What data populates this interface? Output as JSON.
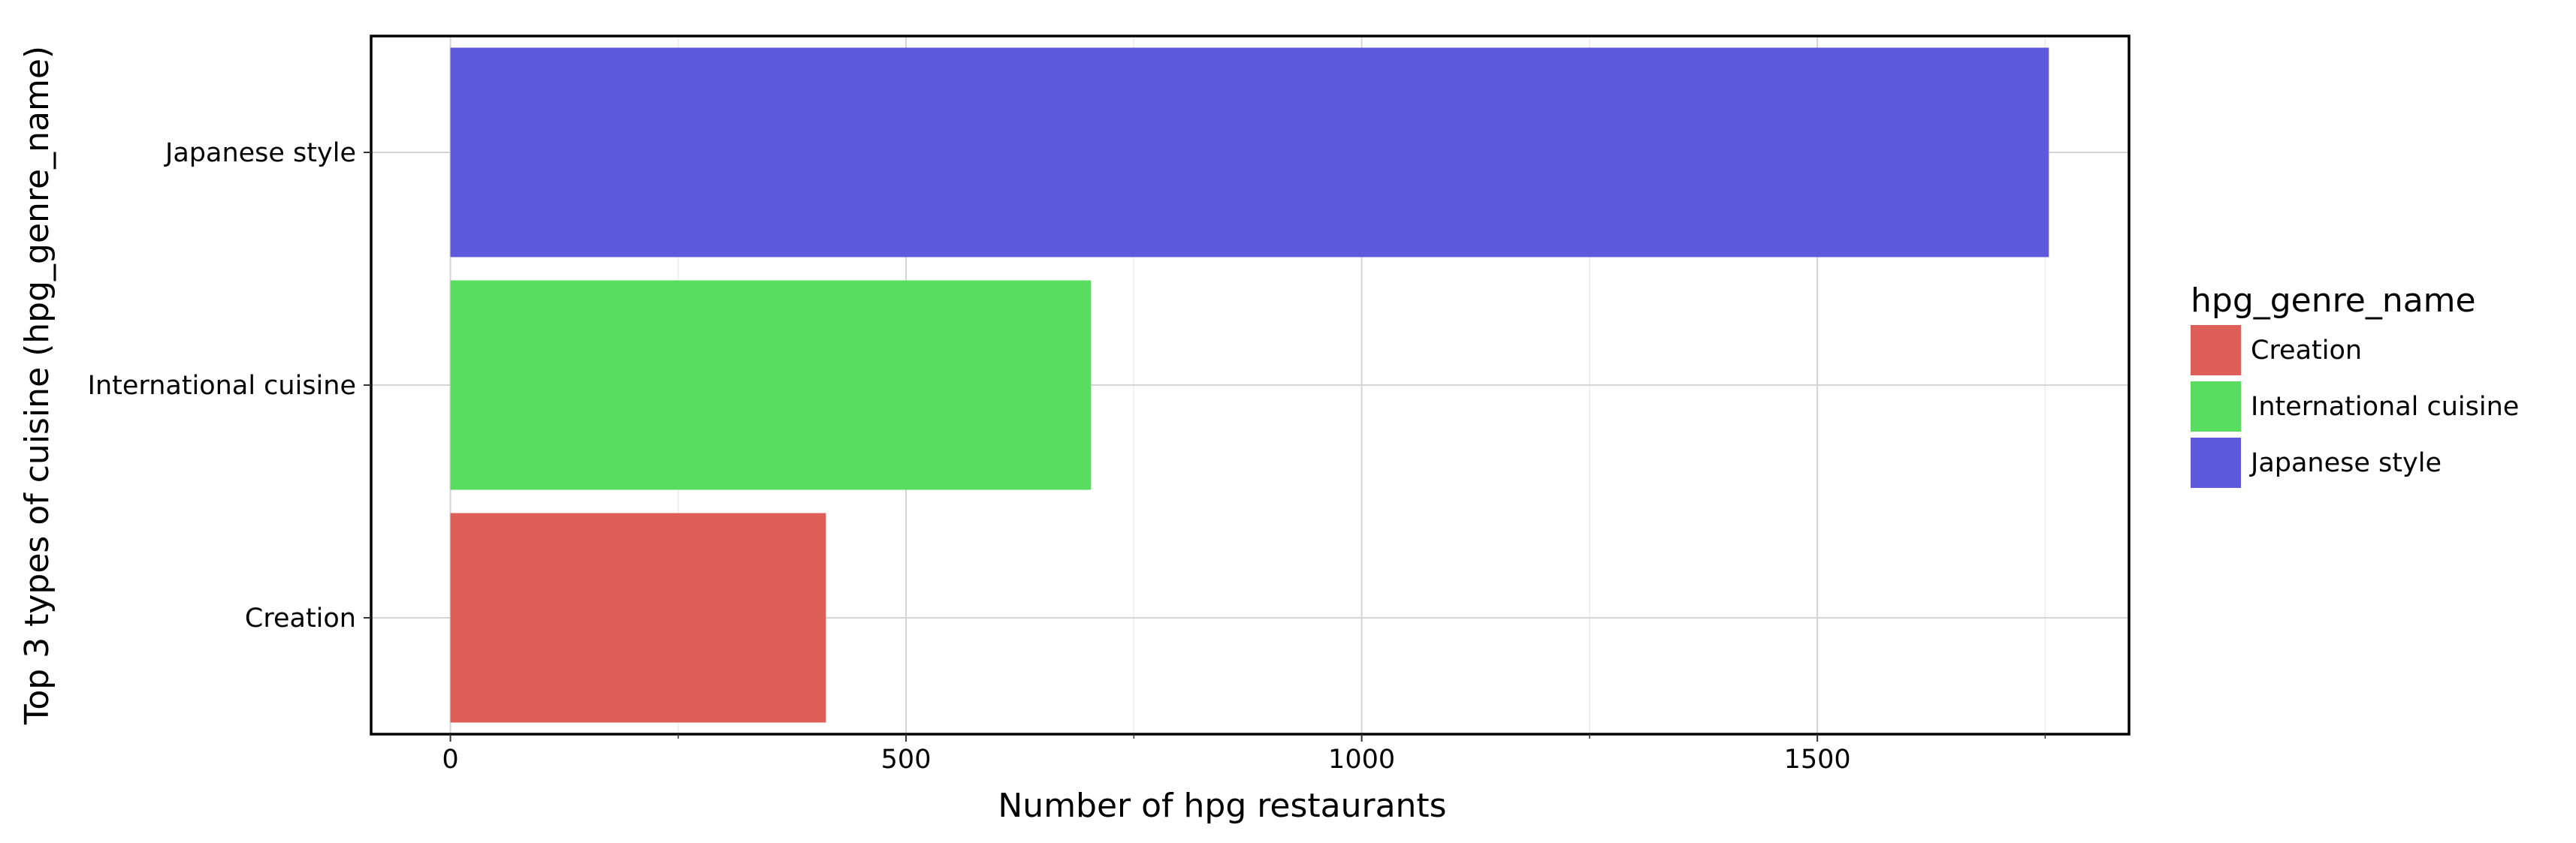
{
  "chart_data": {
    "type": "bar",
    "orientation": "horizontal",
    "categories": [
      "Creation",
      "International cuisine",
      "Japanese style"
    ],
    "values": [
      412,
      703,
      1754
    ],
    "colors": [
      "#de5f57",
      "#59dd60",
      "#5f5adc"
    ],
    "xlabel": "Number of hpg restaurants",
    "ylabel": "Top 3 types of cuisine (hpg_genre_name)",
    "xlim": [
      -87,
      1842
    ],
    "xticks": [
      0,
      500,
      1000,
      1500
    ],
    "xtick_labels": [
      "0",
      "500",
      "1000",
      "1500"
    ],
    "grid": true,
    "legend": {
      "title": "hpg_genre_name",
      "placement": "right",
      "items": [
        {
          "label": "Creation",
          "color": "#de5f57"
        },
        {
          "label": "International cuisine",
          "color": "#59dd60"
        },
        {
          "label": "Japanese style",
          "color": "#5f5adc"
        }
      ]
    }
  }
}
